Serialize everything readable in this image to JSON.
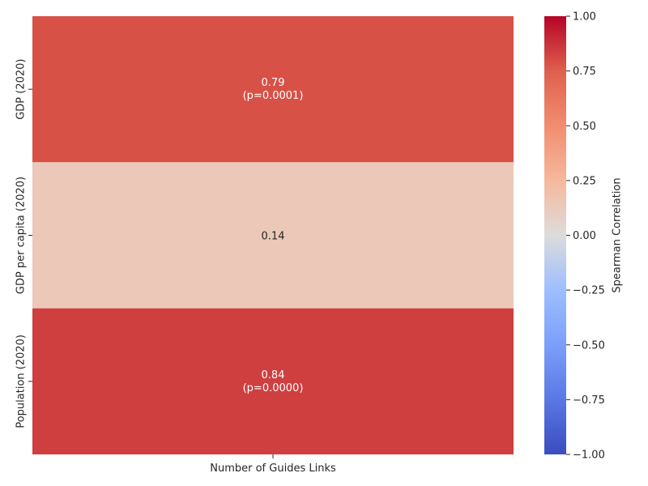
{
  "chart_data": {
    "type": "heatmap",
    "title": "",
    "xlabel": "",
    "ylabel": "",
    "columns": [
      "Number of Guides Links"
    ],
    "rows": [
      "GDP (2020)",
      "GDP per capita (2020)",
      "Population (2020)"
    ],
    "cells": [
      {
        "row": 0,
        "col": 0,
        "value": 0.79,
        "label": "0.79",
        "sublabel": "(p=0.0001)"
      },
      {
        "row": 1,
        "col": 0,
        "value": 0.14,
        "label": "0.14",
        "sublabel": ""
      },
      {
        "row": 2,
        "col": 0,
        "value": 0.84,
        "label": "0.84",
        "sublabel": "(p=0.0000)"
      }
    ],
    "colorbar": {
      "label": "Spearman Correlation",
      "range": [
        -1.0,
        1.0
      ],
      "ticks": [
        "−1.00",
        "−0.75",
        "−0.50",
        "−0.25",
        "0.00",
        "0.25",
        "0.50",
        "0.75",
        "1.00"
      ],
      "tick_values": [
        -1.0,
        -0.75,
        -0.5,
        -0.25,
        0.0,
        0.25,
        0.5,
        0.75,
        1.0
      ],
      "colormap": "coolwarm"
    }
  }
}
